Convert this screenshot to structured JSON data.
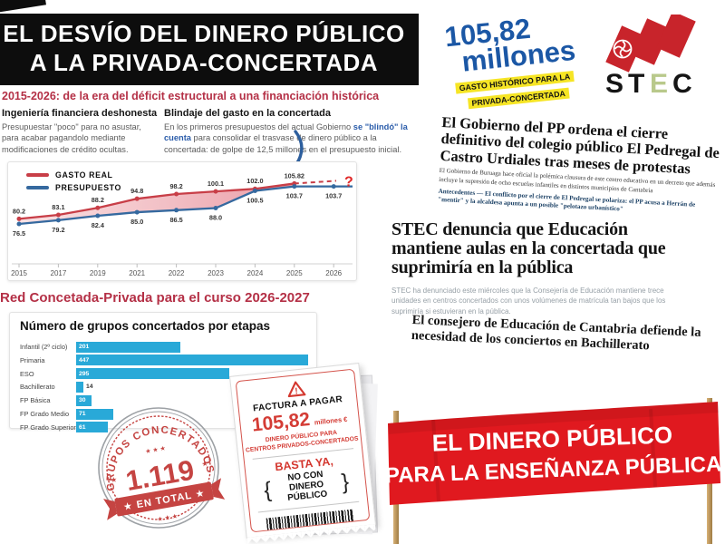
{
  "colors": {
    "accent_red": "#b43046",
    "chart_red": "#c83e47",
    "chart_blue": "#35699f",
    "bar_cyan": "#29a9d8",
    "banner_red": "#e0191f",
    "badge_blue": "#1b57a5",
    "highlight_yellow": "#f6e525",
    "stamp_red": "#c23b38"
  },
  "header": {
    "title_line1": "EL DESVÍO DEL DINERO PÚBLICO",
    "title_line2": "A LA PRIVADA-CONCERTADA",
    "subtitle": "2015-2026: de la era del déficit estructural a una financiación histórica"
  },
  "intro": {
    "left": {
      "heading": "Ingeniería financiera deshonesta",
      "body": "Presupuestar \"poco\" para no asustar, para acabar pagandolo mediante modificaciones de crédito ocultas."
    },
    "right": {
      "heading": "Blindaje del gasto en la concertada",
      "body_pre": "En los primeros presupuestos del actual Gobierno ",
      "body_highlight": "se \"blindó\" la cuenta",
      "body_post": " para consolidar el trasvase de dinero público a la concertada: de golpe de 12,5 millones en el presupuesto inicial."
    }
  },
  "badge": {
    "amount": "105,82",
    "unit": "millones",
    "tag_line1": "GASTO HISTÓRICO PARA LA",
    "tag_line2": "PRIVADA-CONCERTADA"
  },
  "logo": {
    "letters": [
      "S",
      "T",
      "E",
      "C"
    ]
  },
  "chart_data": [
    {
      "type": "line",
      "x": [
        "2015",
        "2017",
        "2019",
        "2021",
        "2022",
        "2023",
        "2024",
        "2025",
        "2026"
      ],
      "series": [
        {
          "name": "GASTO REAL",
          "color": "#c83e47",
          "values": [
            80.2,
            83.1,
            88.2,
            94.8,
            98.2,
            100.1,
            102.0,
            105.82,
            null
          ],
          "labels": [
            "80.2",
            "83.1",
            "88.2",
            "94.8",
            "98.2",
            "100.1",
            "102.0",
            "105.82",
            ""
          ],
          "future_label": "?"
        },
        {
          "name": "PRESUPUESTO",
          "color": "#35699f",
          "values": [
            76.5,
            79.2,
            82.4,
            85.0,
            86.5,
            88.0,
            100.5,
            103.7,
            103.7
          ],
          "labels": [
            "76.5",
            "79.2",
            "82.4",
            "85.0",
            "86.5",
            "88.0",
            "100.5",
            "103.7",
            "103.7"
          ]
        }
      ],
      "ylim": [
        74,
        110
      ],
      "grid": false,
      "legend_position": "top-left",
      "area_between": true
    },
    {
      "type": "bar",
      "orientation": "horizontal",
      "title": "Número de grupos concertados por etapas",
      "categories": [
        "Infantil (2º ciclo)",
        "Primaria",
        "ESO",
        "Bachillerato",
        "FP Básica",
        "FP Grado Medio",
        "FP Grado Superior"
      ],
      "values": [
        201,
        447,
        295,
        14,
        30,
        71,
        61
      ],
      "bar_color": "#29a9d8",
      "xlim": [
        0,
        450
      ]
    }
  ],
  "section2": {
    "heading": "Red Concetada-Privada para el curso 2026-2027"
  },
  "stamp": {
    "arc_text": "GRUPOS CONCERTADOS",
    "number": "1.119",
    "ribbon_text": "★ EN TOTAL ★",
    "stars_row": "★ ★ ★",
    "star": "★"
  },
  "receipt": {
    "header": "FACTURA A PAGAR",
    "amount": "105,82",
    "unit": "millones €",
    "line1": "DINERO PÚBLICO PARA",
    "line2": "CENTROS PRIVADOS-CONCERTADOS",
    "cta1": "BASTA YA,",
    "cta2": "NO CON DINERO PÚBLICO",
    "warning": "!"
  },
  "news": [
    {
      "headline": "El Gobierno del PP ordena el cierre definitivo del colegio público El Pedregal de Castro Urdiales tras meses de protestas",
      "deck": "El Gobierno de Buruaga hace oficial la polémica clausura de este centro educativo en un decreto que además incluye la supresión de ocho escuelas infantiles en distintos municipios de Cantabria",
      "related": "Antecedentes — El conflicto por el cierre de El Pedregal se polariza: el PP acusa a Herrán de \"mentir\" y la alcaldesa apunta a un posible \"pelotazo urbanístico\""
    },
    {
      "headline": "STEC denuncia que Educación mantiene aulas en la concertada que suprimiría en la pública",
      "deck": "STEC ha denunciado este miércoles que la Consejería de Educación mantiene trece unidades en centros concertados con unos volúmenes de matrícula tan bajos que los suprimiría si estuvieran en la pública."
    },
    {
      "headline": "El consejero de Educación de Cantabria defiende la necesidad de los conciertos en Bachillerato"
    }
  ],
  "banner": {
    "line1": "EL DINERO PÚBLICO",
    "line2": "PARA LA ENSEÑANZA PÚBLICA"
  }
}
